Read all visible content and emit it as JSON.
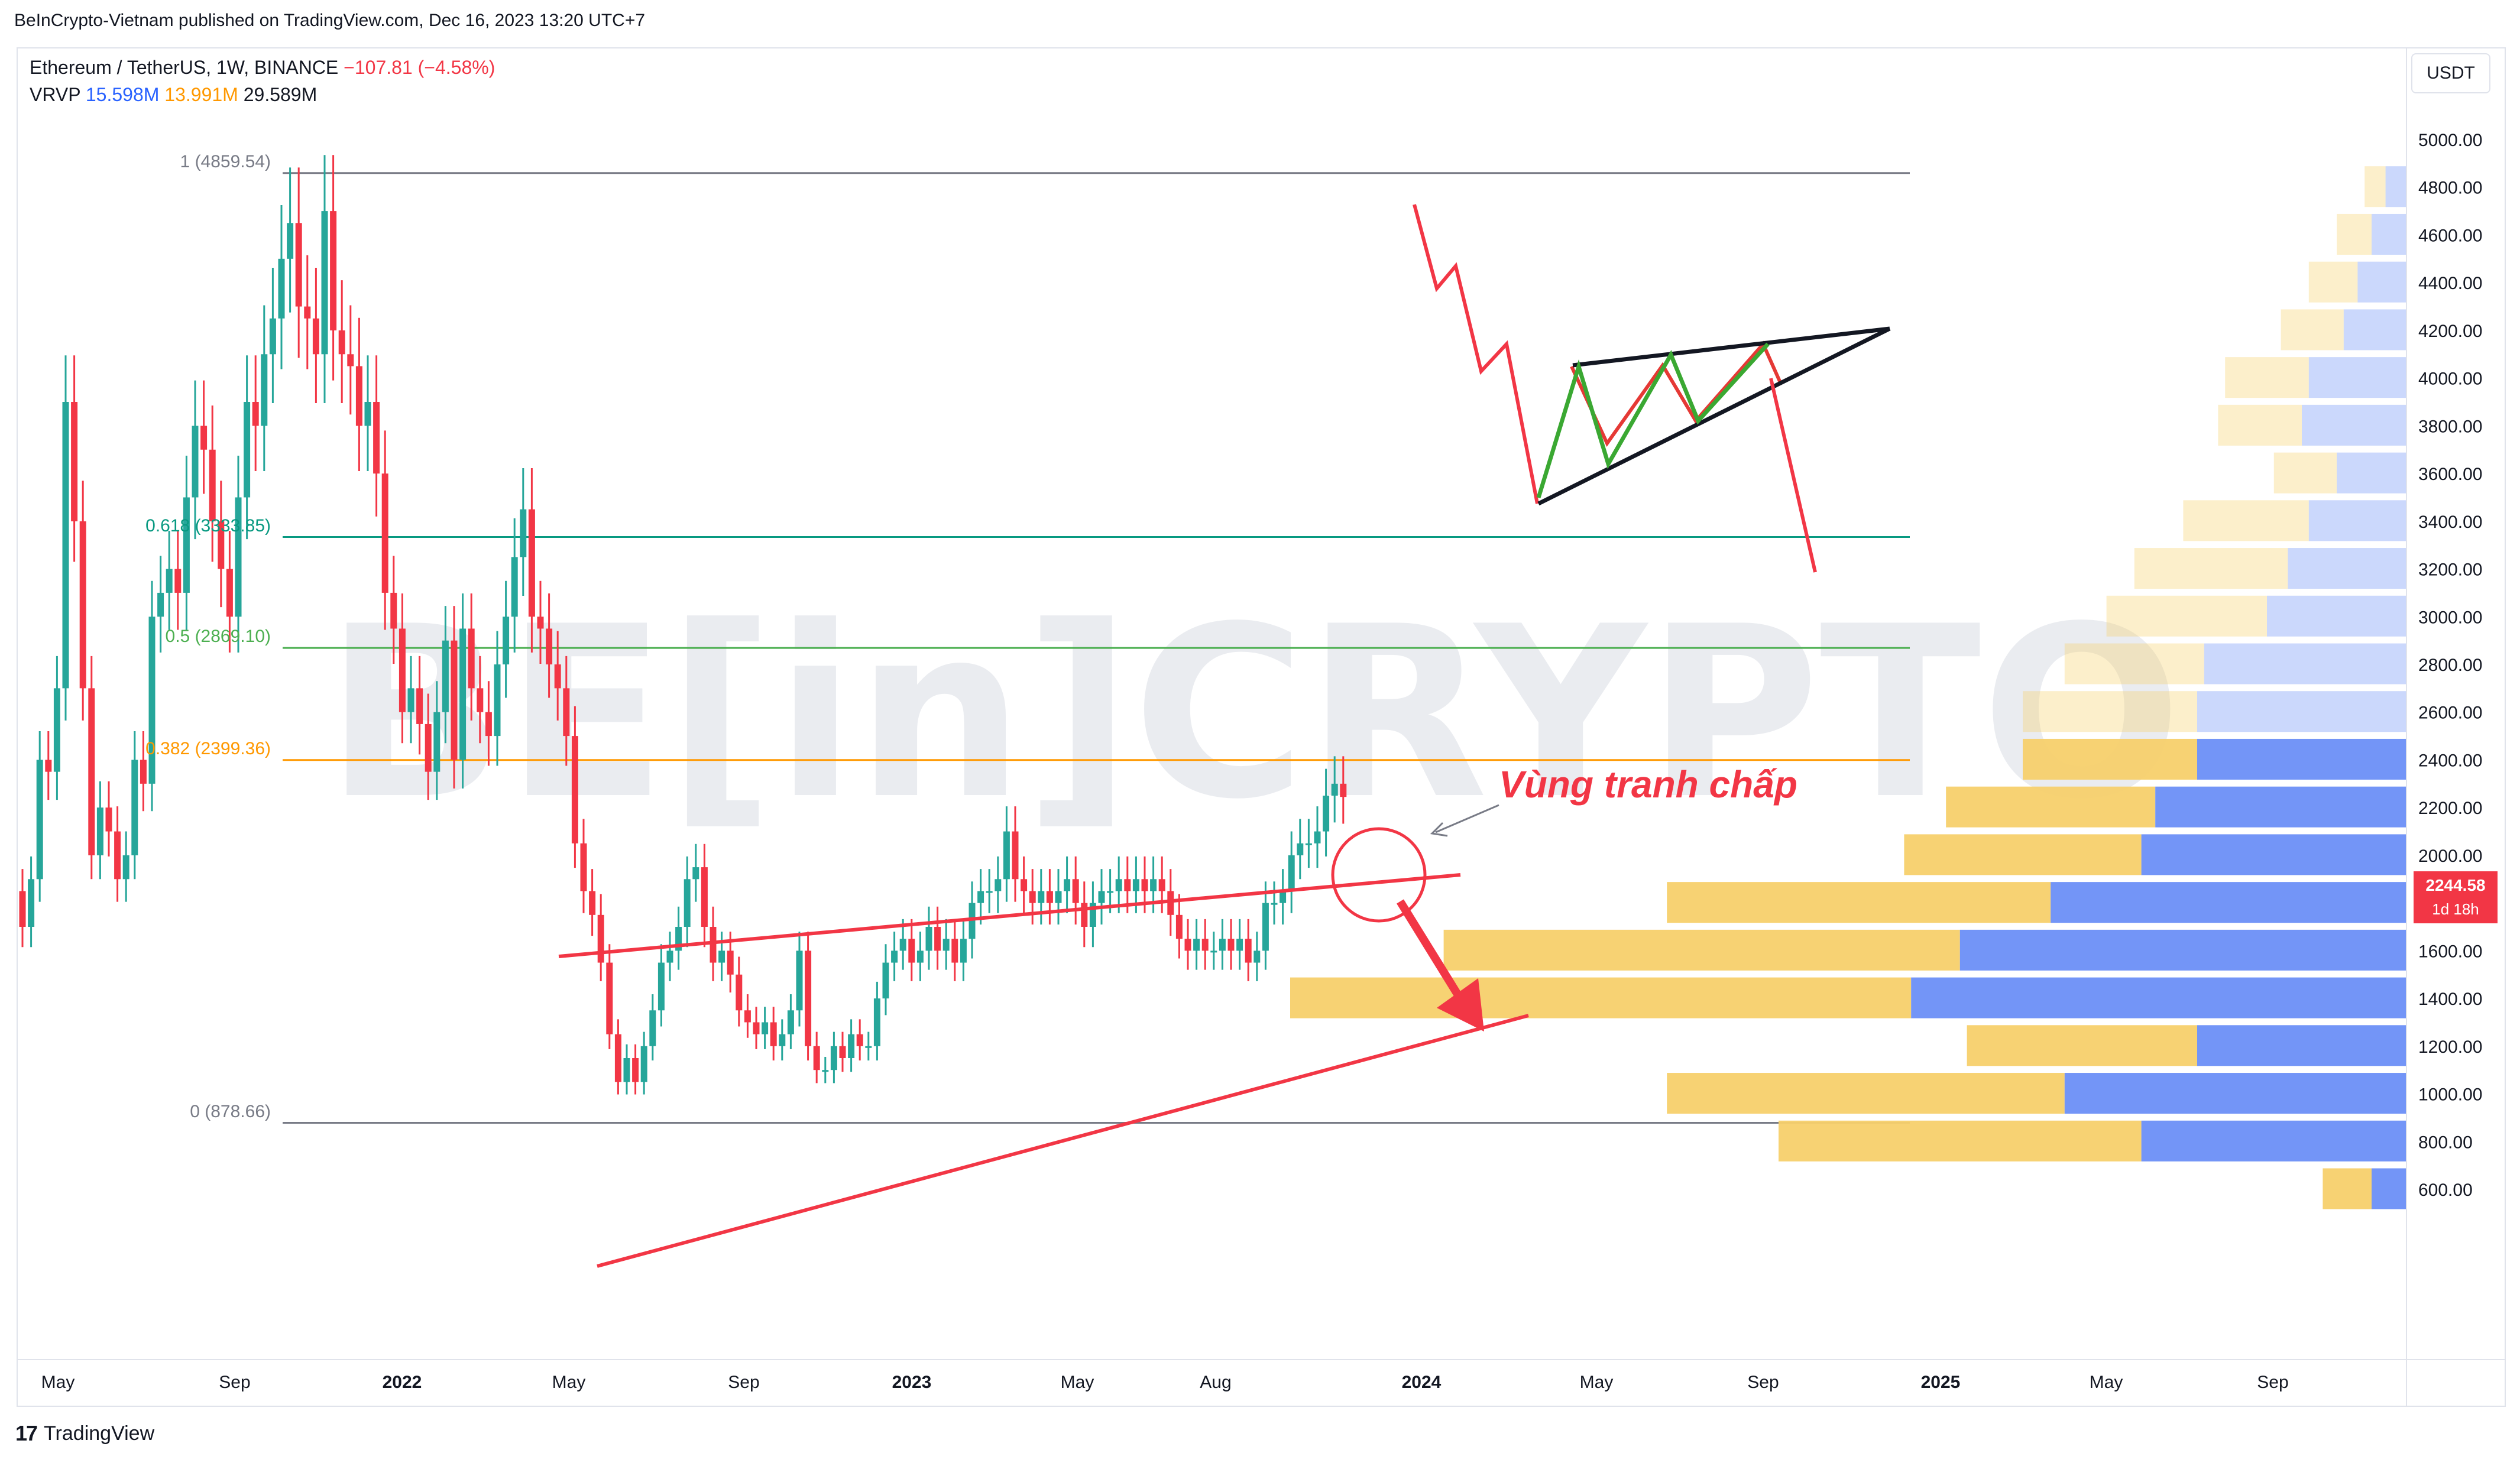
{
  "header": {
    "published": "BeInCrypto-Vietnam published on TradingView.com, Dec 16, 2023 13:20 UTC+7"
  },
  "legend": {
    "symbol": "Ethereum / TetherUS, 1W, BINANCE",
    "change": "−107.81 (−4.58%)",
    "vrvp_label": "VRVP",
    "vrvp_up": "15.598M",
    "vrvp_down": "13.991M",
    "vrvp_total": "29.589M"
  },
  "currency_button": "USDT",
  "price_tag": {
    "price": "2244.58",
    "countdown": "1d 18h"
  },
  "annotation": "Vùng tranh chấp",
  "footer": {
    "brand": "TradingView"
  },
  "watermark": "BE[in]CRYPTO",
  "colors": {
    "up": "#26a69a",
    "down": "#f23645",
    "vp_up": "#6b8ff7",
    "vp_down": "#f7d06b"
  },
  "chart_data": {
    "type": "candlestick",
    "price_axis": {
      "ticks": [
        "5000.00",
        "4800.00",
        "4600.00",
        "4400.00",
        "4200.00",
        "4000.00",
        "3800.00",
        "3600.00",
        "3400.00",
        "3200.00",
        "3000.00",
        "2800.00",
        "2600.00",
        "2400.00",
        "2200.00",
        "2000.00",
        "1800.00",
        "1600.00",
        "1400.00",
        "1200.00",
        "1000.00",
        "800.00",
        "600.00"
      ],
      "ylim": [
        520,
        5180
      ]
    },
    "time_axis": {
      "ticks": [
        "May",
        "Sep",
        "2022",
        "May",
        "Sep",
        "2023",
        "May",
        "Aug",
        "2024",
        "May",
        "Sep",
        "2025",
        "May",
        "Sep"
      ]
    },
    "fib_levels": [
      {
        "label": "1 (4859.54)",
        "value": 4859.54,
        "color": "#787b86"
      },
      {
        "label": "0.618 (3333.85)",
        "value": 3333.85,
        "color": "#089981"
      },
      {
        "label": "0.5 (2869.10)",
        "value": 2869.1,
        "color": "#4caf50"
      },
      {
        "label": "0.382 (2399.36)",
        "value": 2399.36,
        "color": "#ff9800"
      },
      {
        "label": "0 (878.66)",
        "value": 878.66,
        "color": "#787b86"
      }
    ],
    "close": [
      1700,
      1900,
      2400,
      2350,
      2700,
      3900,
      3400,
      2700,
      2000,
      2200,
      2100,
      1900,
      2000,
      2400,
      2300,
      3000,
      3100,
      3200,
      3100,
      3500,
      3800,
      3700,
      3400,
      3200,
      3000,
      3500,
      3900,
      3800,
      4100,
      4250,
      4500,
      4650,
      4300,
      4250,
      4100,
      4700,
      4200,
      4100,
      4050,
      3800,
      3900,
      3600,
      3100,
      2950,
      2600,
      2700,
      2550,
      2350,
      2600,
      2900,
      2400,
      2950,
      2700,
      2600,
      2500,
      2800,
      3000,
      3250,
      3450,
      3000,
      2950,
      2800,
      2700,
      2500,
      2050,
      1850,
      1750,
      1550,
      1250,
      1050,
      1150,
      1050,
      1200,
      1350,
      1550,
      1600,
      1700,
      1900,
      1950,
      1700,
      1550,
      1600,
      1500,
      1350,
      1300,
      1250,
      1300,
      1200,
      1250,
      1350,
      1600,
      1200,
      1100,
      1100,
      1200,
      1150,
      1250,
      1200,
      1200,
      1400,
      1550,
      1600,
      1650,
      1550,
      1600,
      1700,
      1600,
      1650,
      1550,
      1650,
      1800,
      1850,
      1850,
      1900,
      2100,
      1900,
      1850,
      1800,
      1850,
      1800,
      1850,
      1900,
      1800,
      1700,
      1800,
      1850,
      1850,
      1900,
      1850,
      1900,
      1850,
      1900,
      1850,
      1750,
      1650,
      1600,
      1650,
      1600,
      1600,
      1650,
      1600,
      1650,
      1550,
      1600,
      1800,
      1800,
      1850,
      2000,
      2050,
      2050,
      2100,
      2250,
      2300,
      2244.58
    ],
    "volume_profile": [
      {
        "price": 4800,
        "up": 0.03,
        "down": 0.03
      },
      {
        "price": 4600,
        "up": 0.05,
        "down": 0.05
      },
      {
        "price": 4400,
        "up": 0.07,
        "down": 0.07
      },
      {
        "price": 4200,
        "up": 0.09,
        "down": 0.09
      },
      {
        "price": 4000,
        "up": 0.14,
        "down": 0.12
      },
      {
        "price": 3800,
        "up": 0.15,
        "down": 0.12
      },
      {
        "price": 3600,
        "up": 0.1,
        "down": 0.09
      },
      {
        "price": 3400,
        "up": 0.14,
        "down": 0.18
      },
      {
        "price": 3200,
        "up": 0.17,
        "down": 0.22
      },
      {
        "price": 3000,
        "up": 0.2,
        "down": 0.23
      },
      {
        "price": 2800,
        "up": 0.29,
        "down": 0.2
      },
      {
        "price": 2600,
        "up": 0.3,
        "down": 0.25
      },
      {
        "price": 2400,
        "up": 0.3,
        "down": 0.25
      },
      {
        "price": 2200,
        "up": 0.36,
        "down": 0.3
      },
      {
        "price": 2000,
        "up": 0.38,
        "down": 0.34
      },
      {
        "price": 1800,
        "up": 0.51,
        "down": 0.55
      },
      {
        "price": 1600,
        "up": 0.64,
        "down": 0.74
      },
      {
        "price": 1400,
        "up": 0.71,
        "down": 0.89
      },
      {
        "price": 1200,
        "up": 0.3,
        "down": 0.33
      },
      {
        "price": 1000,
        "up": 0.49,
        "down": 0.57
      },
      {
        "price": 800,
        "up": 0.38,
        "down": 0.52
      },
      {
        "price": 600,
        "up": 0.05,
        "down": 0.07
      }
    ]
  }
}
